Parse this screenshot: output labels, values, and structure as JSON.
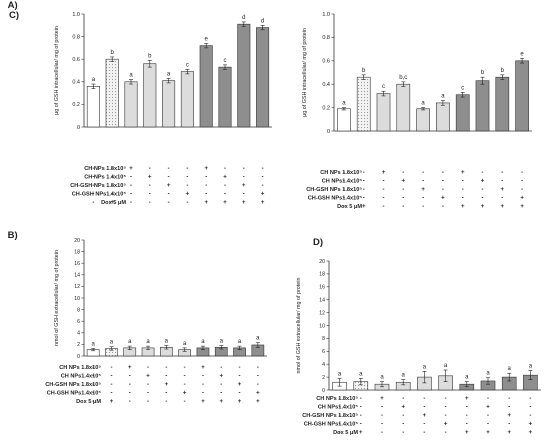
{
  "chart_data": [
    {
      "type": "bar",
      "panel": "A)",
      "ylabel": "μg of GSH intracellular/ mg of protein",
      "ylim": [
        0,
        1.0
      ],
      "yticks": [
        "0",
        "0.2",
        "0.4",
        "0.6",
        "0.8",
        "1.0"
      ],
      "values": [
        0.36,
        0.6,
        0.4,
        0.56,
        0.41,
        0.49,
        0.72,
        0.53,
        0.91,
        0.88
      ],
      "errors": [
        0.02,
        0.02,
        0.02,
        0.03,
        0.02,
        0.02,
        0.02,
        0.02,
        0.02,
        0.02
      ],
      "letters": [
        "a",
        "b",
        "a",
        "b",
        "a",
        "c",
        "e",
        "c",
        "d",
        "d"
      ],
      "fills": [
        "white",
        "dots",
        "light",
        "light",
        "light",
        "light",
        "dark",
        "dark",
        "dark",
        "dark"
      ],
      "rows": [
        {
          "label": "CH NPs 1.8x10⁵",
          "marks": [
            "-",
            "-",
            "+",
            "-",
            "-",
            "-",
            "+",
            "-",
            "-",
            "-"
          ]
        },
        {
          "label": "CH NPs 1.4x10⁵",
          "marks": [
            "-",
            "-",
            "-",
            "+",
            "-",
            "-",
            "-",
            "+",
            "-",
            "-"
          ]
        },
        {
          "label": "CH-GSH NPs 1.8x10⁵",
          "marks": [
            "-",
            "-",
            "-",
            "-",
            "+",
            "-",
            "-",
            "-",
            "+",
            "-"
          ]
        },
        {
          "label": "CH-GSH NPs1.4x10⁵",
          "marks": [
            "-",
            "-",
            "-",
            "-",
            "-",
            "+",
            "-",
            "-",
            "-",
            "+"
          ]
        },
        {
          "label": "Dox 5 μM",
          "marks": [
            "-",
            "+",
            "-",
            "-",
            "-",
            "-",
            "+",
            "+",
            "+",
            "+"
          ]
        }
      ]
    },
    {
      "type": "bar",
      "panel": "C)",
      "ylabel": "μg of GSH intracellular/ mg of protein",
      "ylim": [
        0,
        1.0
      ],
      "yticks": [
        "0",
        "0.2",
        "0.4",
        "0.6",
        "0.8",
        "1.0"
      ],
      "values": [
        0.19,
        0.46,
        0.32,
        0.4,
        0.19,
        0.24,
        0.31,
        0.43,
        0.46,
        0.6
      ],
      "errors": [
        0.01,
        0.02,
        0.02,
        0.02,
        0.01,
        0.02,
        0.02,
        0.03,
        0.02,
        0.02
      ],
      "letters": [
        "a",
        "b",
        "c",
        "b,c",
        "a",
        "a",
        "c",
        "b",
        "b",
        "e"
      ],
      "fills": [
        "white",
        "dots",
        "light",
        "light",
        "light",
        "light",
        "dark",
        "dark",
        "dark",
        "dark"
      ],
      "rows": [
        {
          "label": "CH NPs 1.8x10⁵",
          "marks": [
            "-",
            "-",
            "+",
            "-",
            "-",
            "-",
            "+",
            "-",
            "-",
            "-"
          ]
        },
        {
          "label": "CH NPs1.4x10⁵",
          "marks": [
            "-",
            "-",
            "-",
            "+",
            "-",
            "-",
            "-",
            "+",
            "-",
            "-"
          ]
        },
        {
          "label": "CH-GSH NPs 1.8x10⁵",
          "marks": [
            "-",
            "-",
            "-",
            "-",
            "+",
            "-",
            "-",
            "-",
            "+",
            "-"
          ]
        },
        {
          "label": "CH-GSH NPs1.4x10⁵",
          "marks": [
            "-",
            "-",
            "-",
            "-",
            "-",
            "+",
            "-",
            "-",
            "-",
            "+"
          ]
        },
        {
          "label": "Dox 5 μM",
          "marks": [
            "-",
            "+",
            "-",
            "-",
            "-",
            "-",
            "+",
            "+",
            "+",
            "+"
          ]
        }
      ]
    },
    {
      "type": "bar",
      "panel": "B)",
      "ylabel": "nmol of GSH extracellular/ mg of protein",
      "ylim": [
        0,
        20
      ],
      "yticks": [
        "0",
        "2",
        "4",
        "6",
        "8",
        "10",
        "12",
        "14",
        "16",
        "18",
        "20"
      ],
      "values": [
        1.1,
        1.3,
        1.4,
        1.4,
        1.5,
        1.1,
        1.4,
        1.5,
        1.4,
        1.9
      ],
      "errors": [
        0.2,
        0.3,
        0.3,
        0.3,
        0.3,
        0.3,
        0.3,
        0.3,
        0.3,
        0.4
      ],
      "letters": [
        "a",
        "a",
        "a",
        "a",
        "a",
        "a",
        "a",
        "a",
        "a",
        "a"
      ],
      "fills": [
        "white",
        "dots",
        "light",
        "light",
        "light",
        "light",
        "dark",
        "dark",
        "dark",
        "dark"
      ],
      "rows": [
        {
          "label": "CH NPs 1.8x10⁵",
          "marks": [
            "-",
            "-",
            "+",
            "-",
            "-",
            "-",
            "+",
            "-",
            "-",
            "-"
          ]
        },
        {
          "label": "CH NPs1.4x10⁵",
          "marks": [
            "-",
            "-",
            "-",
            "+",
            "-",
            "-",
            "-",
            "+",
            "-",
            "-"
          ]
        },
        {
          "label": "CH-GSH NPs 1.8x10⁵",
          "marks": [
            "-",
            "-",
            "-",
            "-",
            "+",
            "-",
            "-",
            "-",
            "+",
            "-"
          ]
        },
        {
          "label": "CH-GSH NPs1.4x10⁵",
          "marks": [
            "-",
            "-",
            "-",
            "-",
            "-",
            "+",
            "-",
            "-",
            "-",
            "+"
          ]
        },
        {
          "label": "Dox 5 μM",
          "marks": [
            "-",
            "+",
            "-",
            "-",
            "-",
            "-",
            "+",
            "+",
            "+",
            "+"
          ]
        }
      ]
    },
    {
      "type": "bar",
      "panel": "D)",
      "ylabel": "nmol of GSH extracellular/ mg of protein",
      "ylim": [
        0,
        20
      ],
      "yticks": [
        "0",
        "2",
        "4",
        "6",
        "8",
        "10",
        "12",
        "14",
        "16",
        "18",
        "20"
      ],
      "values": [
        1.2,
        1.3,
        0.9,
        1.2,
        2.0,
        2.2,
        0.9,
        1.4,
        2.0,
        2.3
      ],
      "errors": [
        0.6,
        0.5,
        0.4,
        0.4,
        0.9,
        0.9,
        0.4,
        0.5,
        0.6,
        0.7
      ],
      "letters": [
        "a",
        "a",
        "a",
        "a",
        "a",
        "a",
        "a",
        "a",
        "a",
        "a"
      ],
      "fills": [
        "white",
        "dots",
        "light",
        "light",
        "light",
        "light",
        "dark",
        "dark",
        "dark",
        "dark"
      ],
      "rows": [
        {
          "label": "CH NPs 1.8x10⁵",
          "marks": [
            "-",
            "-",
            "+",
            "-",
            "-",
            "-",
            "+",
            "-",
            "-",
            "-"
          ]
        },
        {
          "label": "CH NPs1.4x10⁵",
          "marks": [
            "-",
            "-",
            "-",
            "+",
            "-",
            "-",
            "-",
            "+",
            "-",
            "-"
          ]
        },
        {
          "label": "CH-GSH NPs 1.8x10⁵",
          "marks": [
            "-",
            "-",
            "-",
            "-",
            "+",
            "-",
            "-",
            "-",
            "+",
            "-"
          ]
        },
        {
          "label": "CH-GSH NPs1.4x10⁵",
          "marks": [
            "-",
            "-",
            "-",
            "-",
            "-",
            "+",
            "-",
            "-",
            "-",
            "+"
          ]
        },
        {
          "label": "Dox 5 μM",
          "marks": [
            "-",
            "+",
            "-",
            "-",
            "-",
            "-",
            "+",
            "+",
            "+",
            "+"
          ]
        }
      ]
    }
  ],
  "colors": {
    "white": "#ffffff",
    "dots": "#f1f1f1",
    "light": "#dcdcdc",
    "dark": "#8e8e8e",
    "stroke": "#333333"
  }
}
